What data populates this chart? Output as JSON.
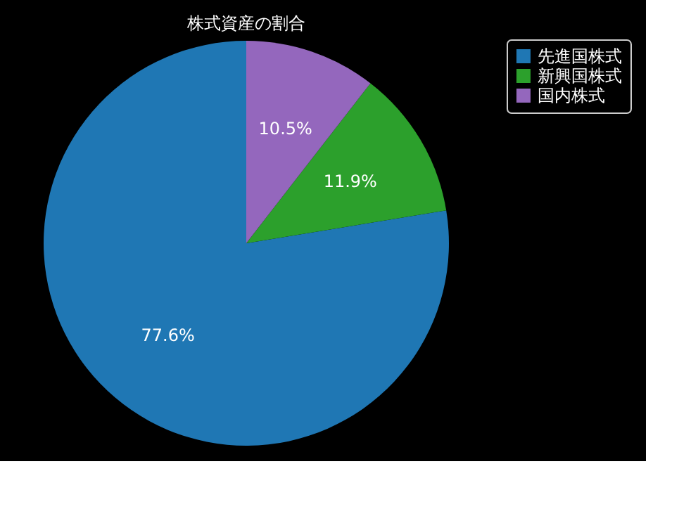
{
  "chart_data": {
    "type": "pie",
    "title": "株式資産の割合",
    "categories": [
      "先進国株式",
      "新興国株式",
      "国内株式"
    ],
    "values": [
      77.6,
      11.9,
      10.5
    ],
    "colors": [
      "#1f77b4",
      "#2ca02c",
      "#9467bd"
    ],
    "value_labels": [
      "77.6%",
      "11.9%",
      "10.5%"
    ],
    "legend": "right"
  }
}
